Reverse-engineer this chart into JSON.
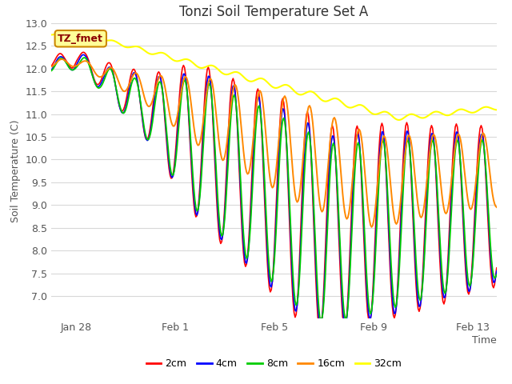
{
  "title": "Tonzi Soil Temperature Set A",
  "xlabel": "Time",
  "ylabel": "Soil Temperature (C)",
  "ylim": [
    6.5,
    13.0
  ],
  "yticks": [
    7.0,
    7.5,
    8.0,
    8.5,
    9.0,
    9.5,
    10.0,
    10.5,
    11.0,
    11.5,
    12.0,
    12.5,
    13.0
  ],
  "series_colors": [
    "#ff0000",
    "#0000ff",
    "#00cc00",
    "#ff8800",
    "#ffff00"
  ],
  "series_labels": [
    "2cm",
    "4cm",
    "8cm",
    "16cm",
    "32cm"
  ],
  "fig_bg_color": "#ffffff",
  "plot_bg_color": "#ffffff",
  "legend_label": "TZ_fmet",
  "legend_bg": "#ffff99",
  "legend_border": "#cc8800",
  "title_fontsize": 12,
  "axis_label_fontsize": 9,
  "tick_fontsize": 9,
  "xtick_labels": [
    "Jan 28",
    "Feb 1",
    "Feb 5",
    "Feb 9",
    "Feb 13"
  ]
}
